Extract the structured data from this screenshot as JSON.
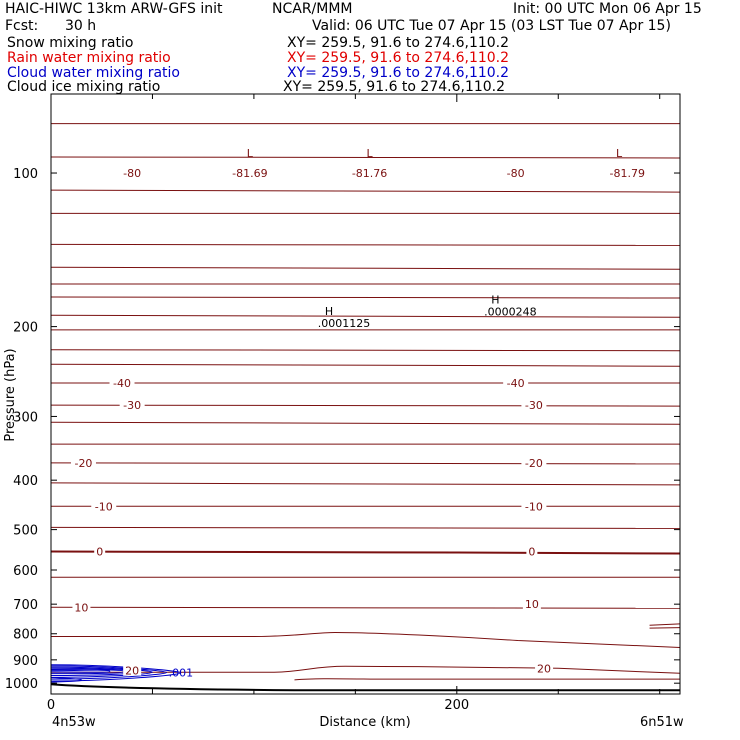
{
  "header": {
    "model": "HAIC-HIWC 13km ARW-GFS init",
    "org": "NCAR/MMM",
    "init": "Init: 00 UTC Mon 06 Apr 15",
    "fcst_label": "Fcst:",
    "fcst_value": "30 h",
    "valid": "Valid: 06 UTC Tue 07 Apr 15 (03 LST Tue 07 Apr 15)"
  },
  "legend": [
    {
      "name": "Snow mixing ratio",
      "xy": "XY= 259.5, 91.6 to 274.6,110.2",
      "color": "#000000"
    },
    {
      "name": "Rain water mixing ratio",
      "xy": "XY= 259.5, 91.6 to 274.6,110.2",
      "color": "#e00000"
    },
    {
      "name": "Cloud water mixing ratio",
      "xy": "XY= 259.5, 91.6 to 274.6,110.2",
      "color": "#0000c8"
    },
    {
      "name": "Cloud ice mixing ratio",
      "xy": "XY= 259.5, 91.6 to 274.6,110.2",
      "color": "#000000"
    }
  ],
  "axes": {
    "ylabel": "Pressure (hPa)",
    "xlabel": "Distance (km)",
    "x_left_label": "4n53w",
    "x_right_label": "6n51w"
  },
  "colors": {
    "temperature_contour": "#7a1010",
    "cloud_water": "#0000c8",
    "ground": "#000000"
  },
  "chart_data": {
    "type": "line",
    "title": "HAIC-HIWC 13km ARW-GFS init",
    "xlabel": "Distance (km)",
    "ylabel": "Pressure (hPa)",
    "xlim": [
      0,
      310
    ],
    "ylim": [
      1050,
      70
    ],
    "y_log_scale": true,
    "x_ticks": [
      0,
      200
    ],
    "x_minor_ticks": [
      50,
      100,
      150,
      250,
      300
    ],
    "y_ticks": [
      100,
      200,
      300,
      400,
      500,
      600,
      700,
      800,
      900,
      1000
    ],
    "temperature_isotherms_hpa": [
      {
        "p": 80
      },
      {
        "p": 93
      },
      {
        "p": 108
      },
      {
        "p": 120
      },
      {
        "p": 138
      },
      {
        "p": 153
      },
      {
        "p": 165
      },
      {
        "p": 175
      },
      {
        "p": 190
      },
      {
        "p": 203
      },
      {
        "p": 222
      },
      {
        "p": 237
      },
      {
        "p": 258
      },
      {
        "p": 285
      },
      {
        "p": 308
      },
      {
        "p": 340
      },
      {
        "p": 370
      },
      {
        "p": 405
      },
      {
        "p": 450
      },
      {
        "p": 495
      },
      {
        "p": 552,
        "bold": true
      },
      {
        "p": 620
      },
      {
        "p": 710
      },
      {
        "p": 810,
        "bulge": true
      },
      {
        "p": 935,
        "bump": true
      },
      {
        "p": 1005,
        "ground": true
      }
    ],
    "contour_labels": [
      {
        "x": 40,
        "p": 100,
        "text": "-80"
      },
      {
        "x": 98,
        "p": 100,
        "text": "-81.69"
      },
      {
        "x": 157,
        "p": 100,
        "text": "-81.76"
      },
      {
        "x": 229,
        "p": 100,
        "text": "-80"
      },
      {
        "x": 284,
        "p": 100,
        "text": "-81.79"
      },
      {
        "x": 35,
        "p": 258,
        "text": "-40"
      },
      {
        "x": 229,
        "p": 258,
        "text": "-40"
      },
      {
        "x": 40,
        "p": 285,
        "text": "-30"
      },
      {
        "x": 238,
        "p": 285,
        "text": "-30"
      },
      {
        "x": 16,
        "p": 370,
        "text": "-20"
      },
      {
        "x": 238,
        "p": 370,
        "text": "-20"
      },
      {
        "x": 26,
        "p": 450,
        "text": "-10"
      },
      {
        "x": 238,
        "p": 450,
        "text": "-10"
      },
      {
        "x": 24,
        "p": 552,
        "text": "0"
      },
      {
        "x": 237,
        "p": 552,
        "text": "0"
      },
      {
        "x": 15,
        "p": 710,
        "text": "10"
      },
      {
        "x": 237,
        "p": 700,
        "text": "10"
      },
      {
        "x": 243,
        "p": 935,
        "text": "20"
      },
      {
        "x": 40,
        "p": 945,
        "text": "20"
      }
    ],
    "extrema": [
      {
        "kind": "L",
        "x": 98,
        "p": 93
      },
      {
        "kind": "L",
        "x": 157,
        "p": 93
      },
      {
        "kind": "L",
        "x": 280,
        "p": 93
      },
      {
        "kind": "H",
        "x": 137,
        "p": 190,
        "value": ".0001125"
      },
      {
        "kind": "H",
        "x": 219,
        "p": 180,
        "value": ".0000248"
      }
    ],
    "series": [
      {
        "name": "Cloud water mixing ratio",
        "label": ".001",
        "label_x": 58,
        "label_p": 953,
        "region_x": [
          0,
          64
        ],
        "region_p": [
          920,
          990
        ]
      }
    ]
  }
}
